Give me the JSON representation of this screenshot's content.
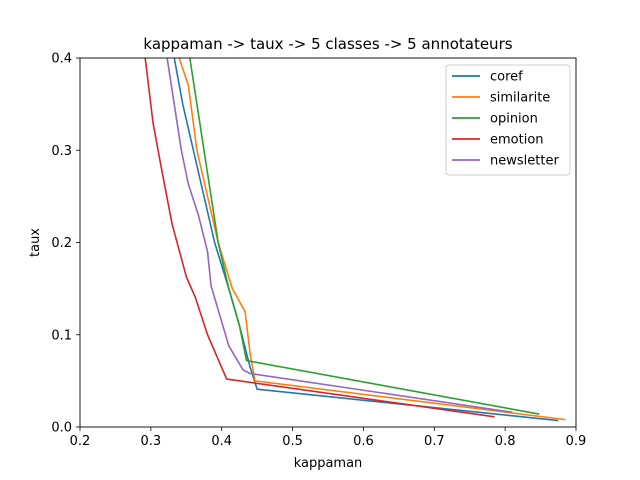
{
  "chart_data": {
    "type": "line",
    "title": "kappaman -> taux -> 5 classes -> 5 annotateurs",
    "xlabel": "kappaman",
    "ylabel": "taux",
    "xlim": [
      0.2,
      0.9
    ],
    "ylim": [
      0.0,
      0.4
    ],
    "xticks": [
      "0.2",
      "0.3",
      "0.4",
      "0.5",
      "0.6",
      "0.7",
      "0.8",
      "0.9"
    ],
    "yticks": [
      "0.0",
      "0.1",
      "0.2",
      "0.3",
      "0.4"
    ],
    "grid": false,
    "legend_position": "top-right",
    "series": [
      {
        "name": "coref",
        "color": "#1f77b4",
        "points": [
          [
            0.333,
            0.4
          ],
          [
            0.345,
            0.35
          ],
          [
            0.36,
            0.3
          ],
          [
            0.375,
            0.25
          ],
          [
            0.39,
            0.2
          ],
          [
            0.41,
            0.15
          ],
          [
            0.425,
            0.11
          ],
          [
            0.44,
            0.065
          ],
          [
            0.45,
            0.041
          ],
          [
            0.875,
            0.007
          ]
        ]
      },
      {
        "name": "similarite",
        "color": "#ff7f0e",
        "points": [
          [
            0.34,
            0.4
          ],
          [
            0.353,
            0.37
          ],
          [
            0.365,
            0.3
          ],
          [
            0.38,
            0.25
          ],
          [
            0.395,
            0.2
          ],
          [
            0.415,
            0.15
          ],
          [
            0.433,
            0.125
          ],
          [
            0.44,
            0.08
          ],
          [
            0.447,
            0.05
          ],
          [
            0.885,
            0.008
          ]
        ]
      },
      {
        "name": "opinion",
        "color": "#2ca02c",
        "points": [
          [
            0.355,
            0.4
          ],
          [
            0.365,
            0.35
          ],
          [
            0.375,
            0.3
          ],
          [
            0.385,
            0.25
          ],
          [
            0.395,
            0.2
          ],
          [
            0.41,
            0.15
          ],
          [
            0.425,
            0.11
          ],
          [
            0.435,
            0.072
          ],
          [
            0.848,
            0.014
          ]
        ]
      },
      {
        "name": "emotion",
        "color": "#d62728",
        "points": [
          [
            0.292,
            0.4
          ],
          [
            0.303,
            0.33
          ],
          [
            0.315,
            0.28
          ],
          [
            0.33,
            0.22
          ],
          [
            0.35,
            0.163
          ],
          [
            0.363,
            0.14
          ],
          [
            0.38,
            0.1
          ],
          [
            0.407,
            0.052
          ],
          [
            0.785,
            0.011
          ]
        ]
      },
      {
        "name": "newsletter",
        "color": "#9467bd",
        "points": [
          [
            0.323,
            0.4
          ],
          [
            0.333,
            0.35
          ],
          [
            0.343,
            0.3
          ],
          [
            0.353,
            0.263
          ],
          [
            0.367,
            0.23
          ],
          [
            0.38,
            0.19
          ],
          [
            0.385,
            0.153
          ],
          [
            0.41,
            0.088
          ],
          [
            0.43,
            0.062
          ],
          [
            0.44,
            0.058
          ],
          [
            0.81,
            0.016
          ]
        ]
      }
    ]
  }
}
